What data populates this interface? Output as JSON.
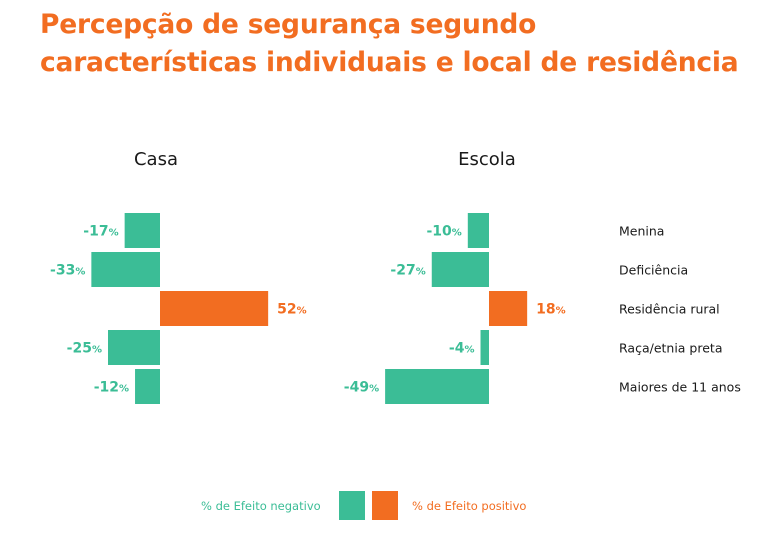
{
  "title_line1": "Percepção de segurança segundo",
  "title_line2": "características individuais e local de residência",
  "colors": {
    "negative": "#3bbd96",
    "positive": "#f26d21",
    "title": "#f26d21"
  },
  "legend": {
    "negative_label": "% de Efeito negativo",
    "positive_label": "% de Efeito positivo"
  },
  "chart_data": [
    {
      "type": "bar",
      "orientation": "horizontal",
      "title": "Casa",
      "categories": [
        "Menina",
        "Deficiência",
        "Residência rural",
        "Raça/etnia preta",
        "Maiores de 11 anos"
      ],
      "values": [
        -17,
        -33,
        52,
        -25,
        -12
      ],
      "value_suffix": "%"
    },
    {
      "type": "bar",
      "orientation": "horizontal",
      "title": "Escola",
      "categories": [
        "Menina",
        "Deficiência",
        "Residência rural",
        "Raça/etnia preta",
        "Maiores de 11 anos"
      ],
      "values": [
        -10,
        -27,
        18,
        -4,
        -49
      ],
      "value_suffix": "%"
    }
  ]
}
